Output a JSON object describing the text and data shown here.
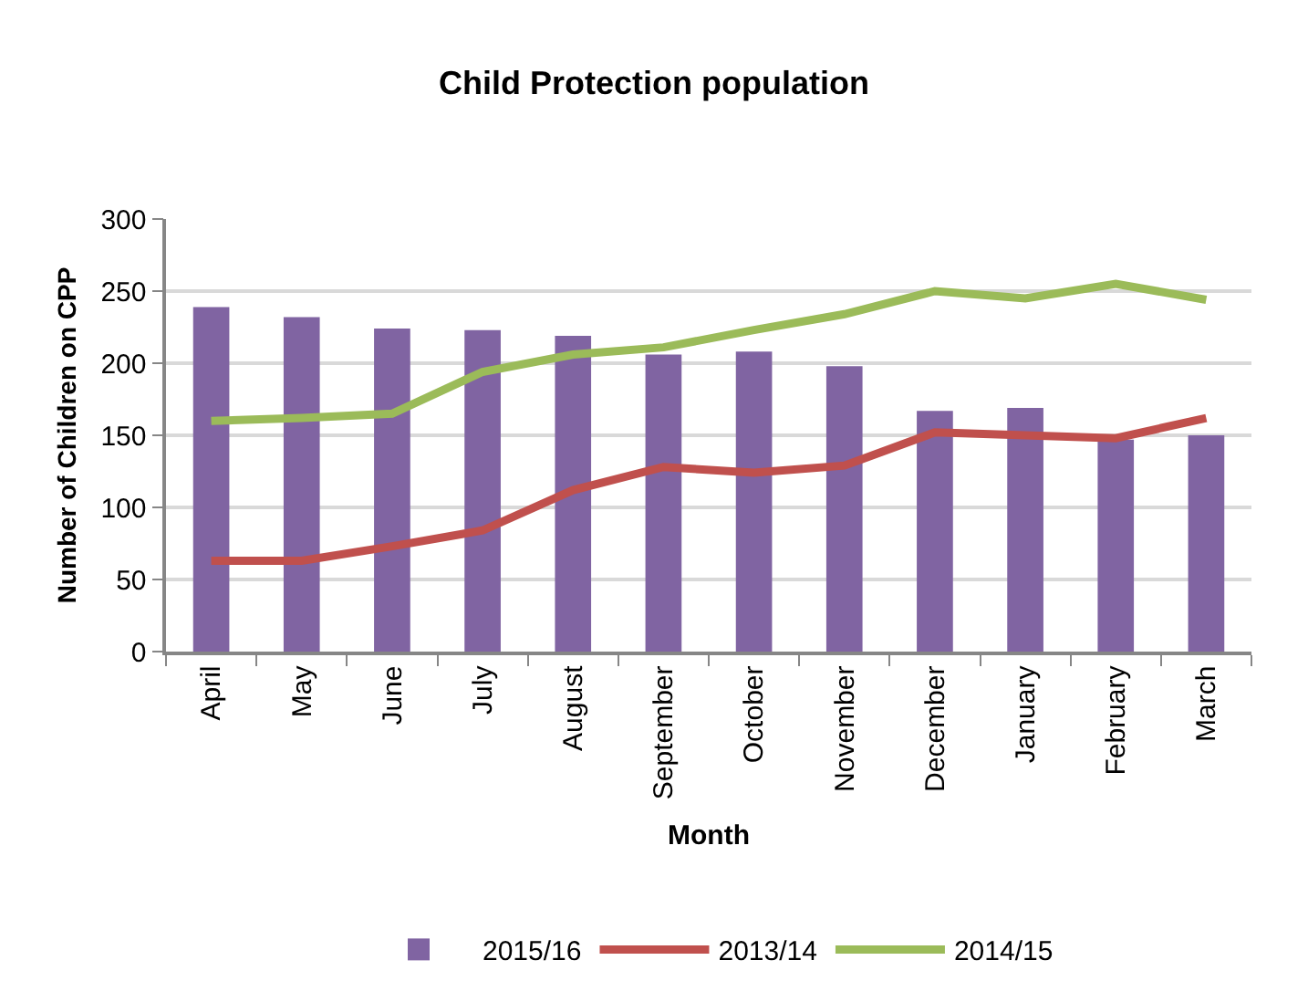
{
  "chart_data": {
    "type": "bar",
    "title": "Child Protection population",
    "xlabel": "Month",
    "ylabel": "Number of Children on CPP",
    "categories": [
      "April",
      "May",
      "June",
      "July",
      "August",
      "September",
      "October",
      "November",
      "December",
      "January",
      "February",
      "March"
    ],
    "series": [
      {
        "name": "2015/16",
        "color": "#8064a2",
        "values": [
          239,
          232,
          224,
          223,
          219,
          206,
          208,
          198,
          167,
          169,
          147,
          150
        ]
      },
      {
        "name": "2013/14",
        "type": "line",
        "color": "#c0504d",
        "values": [
          63,
          63,
          73,
          84,
          112,
          128,
          124,
          129,
          152,
          150,
          148,
          162
        ]
      },
      {
        "name": "2014/15",
        "type": "line",
        "color": "#9bbb59",
        "values": [
          160,
          162,
          165,
          194,
          206,
          211,
          223,
          234,
          250,
          245,
          255,
          244
        ]
      }
    ],
    "ylim": [
      0,
      300
    ],
    "yticks": [
      0,
      50,
      100,
      150,
      200,
      250,
      300
    ],
    "grid": "y",
    "legend": "bottom",
    "marker": "none",
    "line_style": "solid"
  }
}
